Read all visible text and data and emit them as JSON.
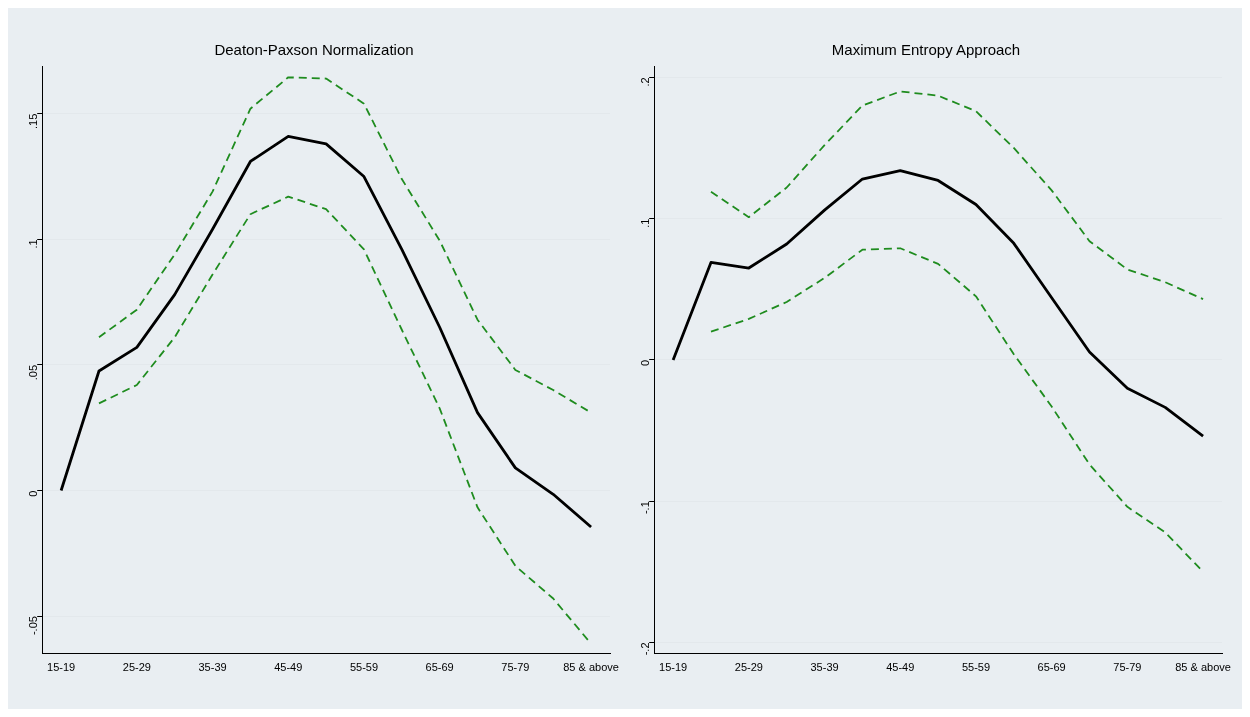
{
  "chart_data": [
    {
      "type": "line",
      "title": "Deaton-Paxson Normalization",
      "categories": [
        "15-19",
        null,
        "25-29",
        null,
        "35-39",
        null,
        "45-49",
        null,
        "55-59",
        null,
        "65-69",
        null,
        "75-79",
        null,
        "85 & above"
      ],
      "series": [
        {
          "color": "#000000",
          "line_style": "solid",
          "values": [
            0,
            0.0476,
            0.057,
            0.078,
            0.104,
            0.131,
            0.141,
            0.138,
            0.125,
            0.096,
            0.065,
            0.031,
            0.009,
            -0.0015,
            -0.0145
          ]
        },
        {
          "color": "#1f8c1f",
          "line_style": "dashed",
          "values": [
            null,
            0.061,
            0.072,
            0.094,
            0.119,
            0.152,
            0.1645,
            0.164,
            0.154,
            0.124,
            0.0995,
            0.068,
            0.048,
            0.04,
            0.031
          ]
        },
        {
          "color": "#1f8c1f",
          "line_style": "dashed",
          "values": [
            null,
            0.0347,
            0.042,
            0.061,
            0.086,
            0.11,
            0.117,
            0.112,
            0.096,
            0.064,
            0.0327,
            -0.0067,
            -0.03,
            -0.043,
            -0.061
          ]
        }
      ],
      "ylim": [
        -0.065,
        0.169
      ],
      "yticks": [
        {
          "value": -0.05,
          "label": "-.05"
        },
        0,
        {
          "value": 0.05,
          "label": ".05"
        },
        {
          "value": 0.1,
          "label": ".1"
        },
        {
          "value": 0.15,
          "label": ".15"
        }
      ],
      "grid": "y"
    },
    {
      "type": "line",
      "title": "Maximum Entropy Approach",
      "categories": [
        "15-19",
        null,
        "25-29",
        null,
        "35-39",
        null,
        "45-49",
        null,
        "55-59",
        null,
        "65-69",
        null,
        "75-79",
        null,
        "85 & above"
      ],
      "series": [
        {
          "color": "#000000",
          "line_style": "solid",
          "values": [
            0,
            0.069,
            0.065,
            0.082,
            0.106,
            0.128,
            0.134,
            0.127,
            0.11,
            0.0825,
            0.044,
            0.0056,
            -0.02,
            -0.0336,
            -0.054
          ]
        },
        {
          "color": "#1f8c1f",
          "line_style": "dashed",
          "values": [
            null,
            0.119,
            0.101,
            0.122,
            0.152,
            0.18,
            0.19,
            0.187,
            0.176,
            0.15,
            0.12,
            0.084,
            0.064,
            0.055,
            0.043
          ]
        },
        {
          "color": "#1f8c1f",
          "line_style": "dashed",
          "values": [
            null,
            0.02,
            0.029,
            0.041,
            0.058,
            0.078,
            0.079,
            0.068,
            0.045,
            0.004,
            -0.033,
            -0.074,
            -0.104,
            -0.122,
            -0.15
          ]
        }
      ],
      "ylim": [
        -0.208,
        0.208
      ],
      "yticks": [
        {
          "value": -0.2,
          "label": "-.2"
        },
        {
          "value": -0.1,
          "label": "-.1"
        },
        0,
        {
          "value": 0.1,
          "label": ".1"
        },
        {
          "value": 0.2,
          "label": ".2"
        }
      ],
      "grid": "y"
    }
  ]
}
